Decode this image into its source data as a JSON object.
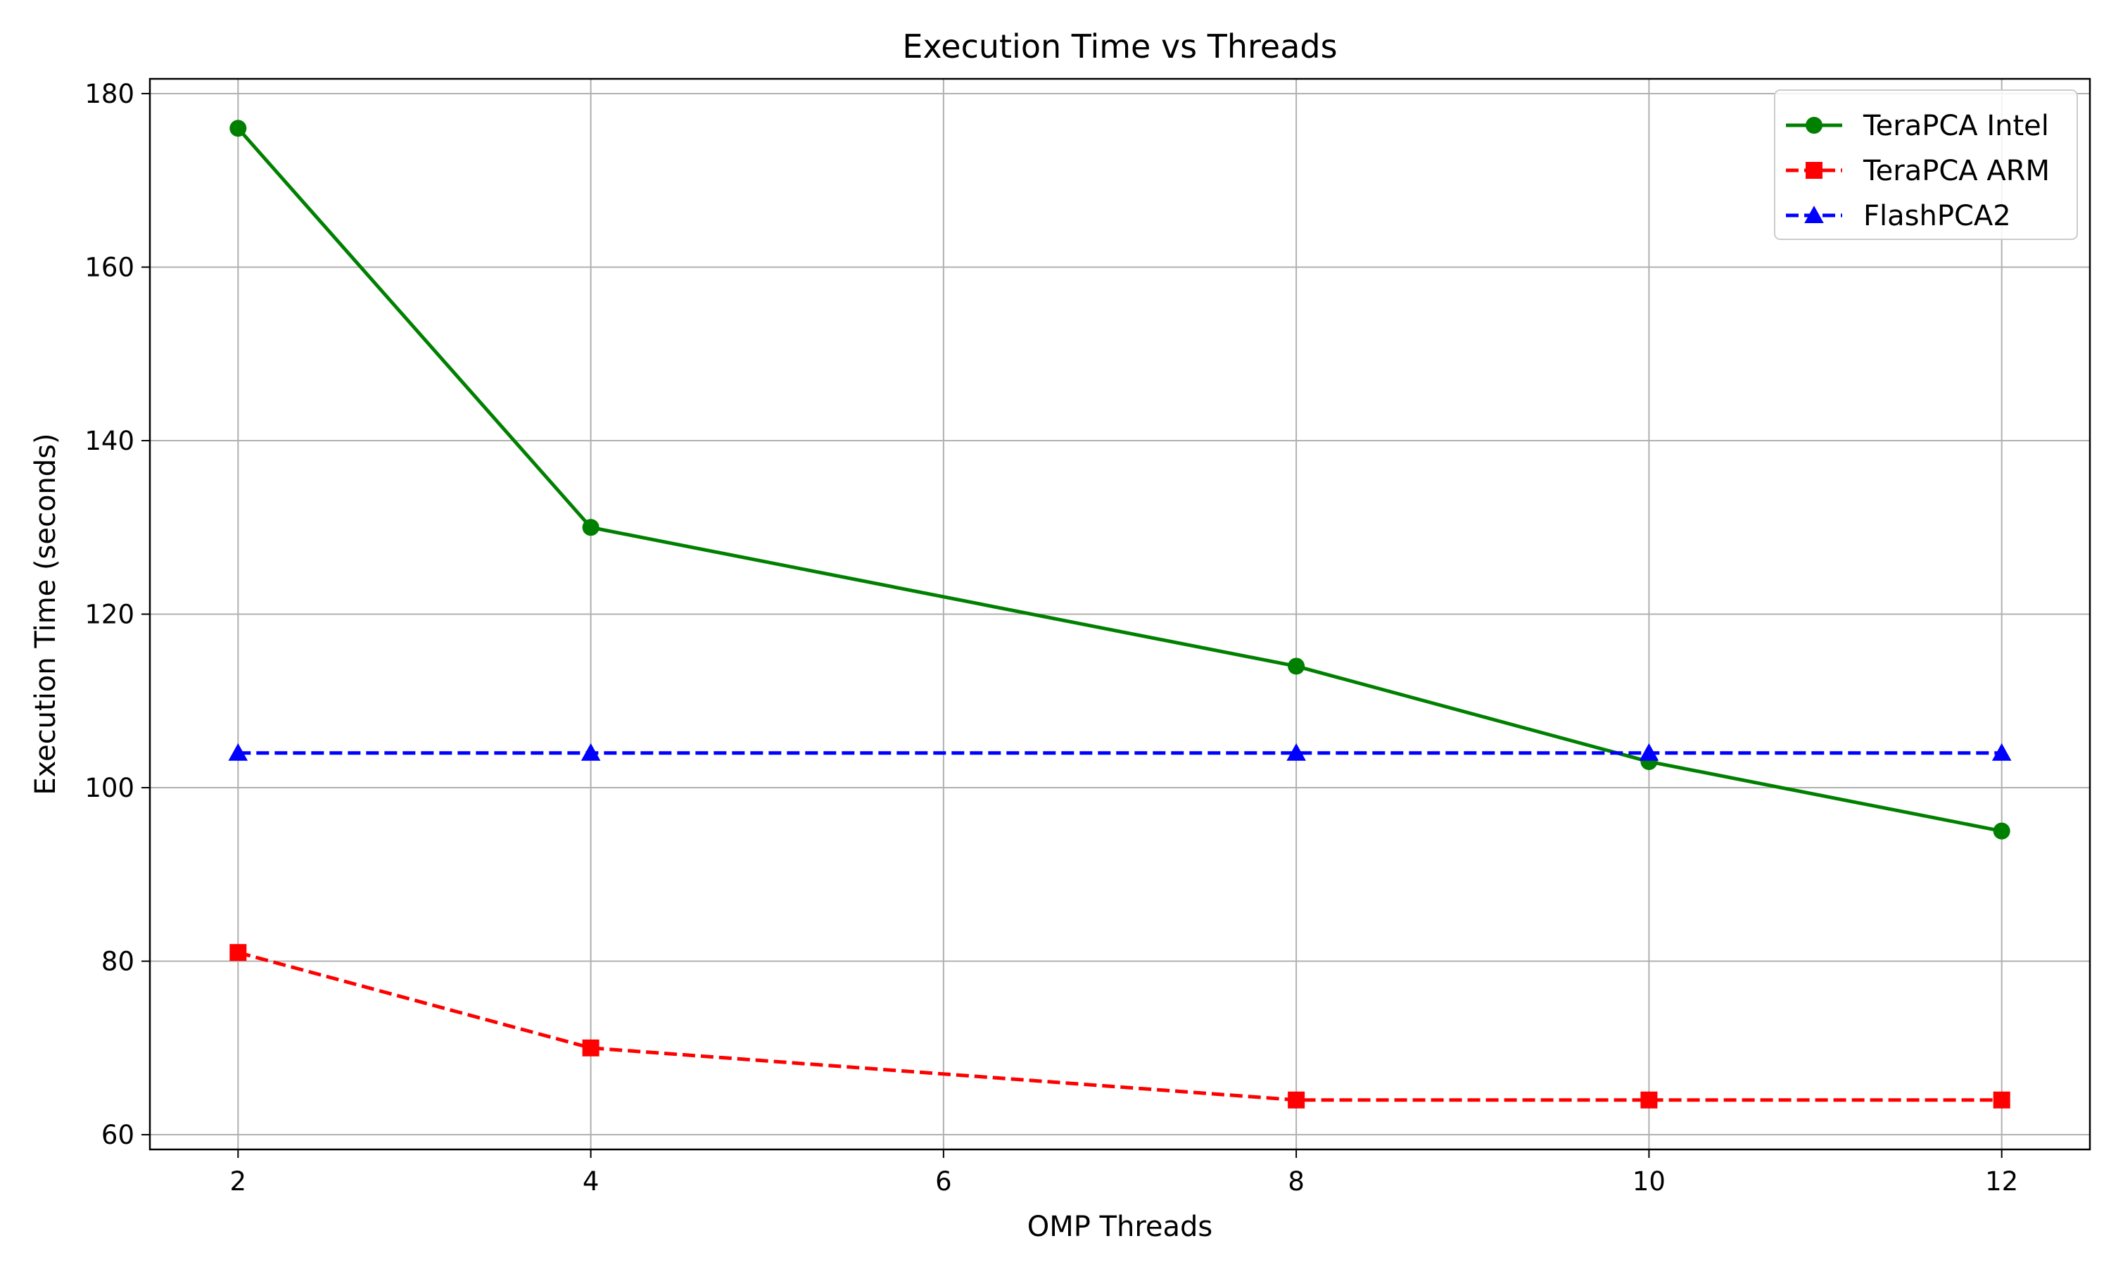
{
  "chart_data": {
    "type": "line",
    "title": "Execution Time vs Threads",
    "xlabel": "OMP Threads",
    "ylabel": "Execution Time (seconds)",
    "x": [
      2,
      4,
      8,
      10,
      12
    ],
    "xticks": [
      2,
      4,
      6,
      8,
      10,
      12
    ],
    "yticks": [
      60,
      80,
      100,
      120,
      140,
      160,
      180
    ],
    "xlim": [
      1.5,
      12.5
    ],
    "ylim": [
      58.3,
      181.7
    ],
    "grid": true,
    "legend_position": "top-right",
    "series": [
      {
        "name": "TeraPCA Intel",
        "values": [
          176,
          130,
          114,
          103,
          95
        ],
        "color": "#008000",
        "marker": "circle",
        "linestyle": "solid"
      },
      {
        "name": "TeraPCA ARM",
        "values": [
          81,
          70,
          64,
          64,
          64
        ],
        "color": "#ff0000",
        "marker": "square",
        "linestyle": "dashed"
      },
      {
        "name": "FlashPCA2",
        "values": [
          104,
          104,
          104,
          104,
          104
        ],
        "color": "#0000ff",
        "marker": "triangle",
        "linestyle": "dashed"
      }
    ]
  }
}
